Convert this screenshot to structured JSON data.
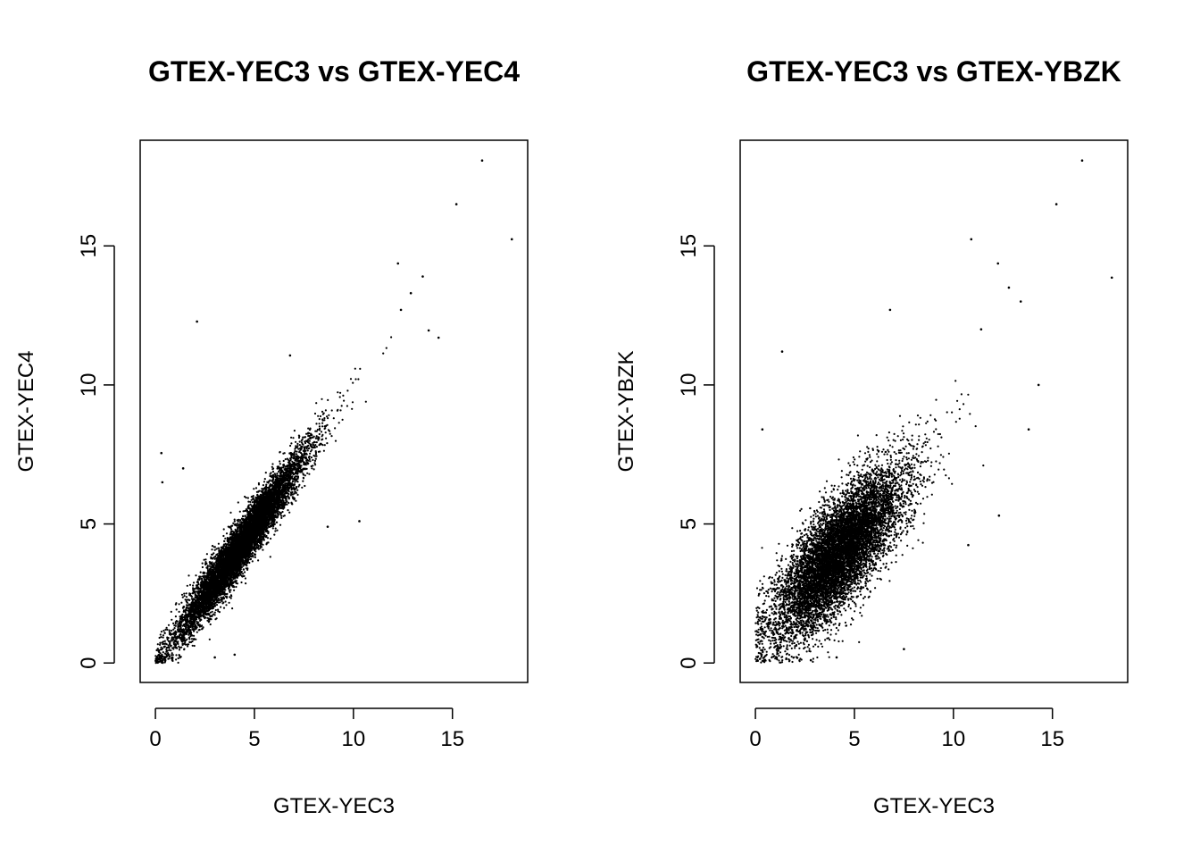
{
  "chart_data": [
    {
      "type": "scatter",
      "title": "GTEX-YEC3 vs GTEX-YEC4",
      "xlabel": "GTEX-YEC3",
      "ylabel": "GTEX-YEC4",
      "xlim": [
        -0.77,
        18.8
      ],
      "ylim": [
        -0.7,
        18.8
      ],
      "xticks": [
        0,
        5,
        10,
        15
      ],
      "yticks": [
        0,
        5,
        10,
        15
      ],
      "grid": false,
      "point_color": "#000000",
      "highlighted_points": [
        [
          16.5,
          18.07
        ],
        [
          15.2,
          16.5
        ],
        [
          18.0,
          15.24
        ],
        [
          12.25,
          14.37
        ],
        [
          2.1,
          12.28
        ],
        [
          6.8,
          11.06
        ],
        [
          10.3,
          5.1
        ],
        [
          8.7,
          4.9
        ],
        [
          0.3,
          7.55
        ],
        [
          0.35,
          6.5
        ],
        [
          1.4,
          7.0
        ],
        [
          13.8,
          11.96
        ],
        [
          14.3,
          11.7
        ],
        [
          13.5,
          13.9
        ],
        [
          12.9,
          13.3
        ],
        [
          12.4,
          12.7
        ],
        [
          0.1,
          0.2
        ],
        [
          0.5,
          0.1
        ],
        [
          3.0,
          0.2
        ],
        [
          4.0,
          0.3
        ]
      ],
      "bulk_cloud": {
        "n": 9000,
        "x_mean": 4.3,
        "x_sd": 1.5,
        "slope": 1.0,
        "intercept": -0.1,
        "noise_sd": 0.45
      }
    },
    {
      "type": "scatter",
      "title": "GTEX-YEC3 vs GTEX-YBZK",
      "xlabel": "GTEX-YEC3",
      "ylabel": "GTEX-YBZK",
      "xlim": [
        -0.77,
        18.8
      ],
      "ylim": [
        -0.7,
        18.8
      ],
      "xticks": [
        0,
        5,
        10,
        15
      ],
      "yticks": [
        0,
        5,
        10,
        15
      ],
      "grid": false,
      "point_color": "#000000",
      "highlighted_points": [
        [
          16.5,
          18.07
        ],
        [
          15.2,
          16.5
        ],
        [
          18.0,
          13.86
        ],
        [
          10.9,
          15.24
        ],
        [
          12.25,
          14.37
        ],
        [
          1.35,
          11.2
        ],
        [
          6.8,
          12.7
        ],
        [
          14.3,
          10.0
        ],
        [
          13.8,
          8.4
        ],
        [
          12.3,
          5.3
        ],
        [
          10.75,
          4.24
        ],
        [
          7.5,
          0.5
        ],
        [
          0.35,
          8.4
        ],
        [
          12.8,
          13.5
        ],
        [
          13.4,
          13.0
        ],
        [
          11.4,
          12.0
        ],
        [
          0.1,
          0.1
        ],
        [
          0.3,
          0.3
        ],
        [
          2.8,
          0.1
        ],
        [
          4.1,
          0.2
        ]
      ],
      "bulk_cloud": {
        "n": 9000,
        "x_mean": 4.2,
        "x_sd": 1.55,
        "slope": 0.72,
        "intercept": 0.9,
        "noise_sd": 0.95
      }
    }
  ]
}
